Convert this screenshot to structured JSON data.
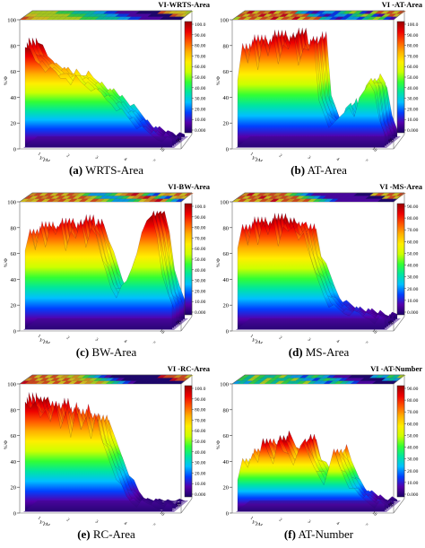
{
  "colorbar_colors": [
    "#1a0066",
    "#5500aa",
    "#0040ff",
    "#00bfff",
    "#00e5a0",
    "#33ff33",
    "#ccff00",
    "#ffee00",
    "#ffb000",
    "#ff5500",
    "#ee0000",
    "#990000"
  ],
  "chart_data": [
    {
      "type": "surface",
      "panel_letter": "(a)",
      "caption": "WRTS-Area",
      "title": "VI-WRTS-Area",
      "zlabel": "%/Φ",
      "xlabel": "ɣ/ɣM",
      "zlim": [
        0,
        100
      ],
      "z_ticks": [
        "0",
        "20",
        "40",
        "60",
        "80",
        "100"
      ],
      "colorbar_ticks": [
        "100.0",
        "90.00",
        "80.00",
        "70.00",
        "60.00",
        "50.00",
        "40.00",
        "30.00",
        "20.00",
        "10.00",
        "0.000"
      ],
      "x_ticks": [
        "1",
        "2",
        "3",
        "4",
        "5"
      ],
      "y_ticks": [
        "10",
        "20"
      ],
      "profile": [
        88,
        80,
        72,
        70,
        66,
        64,
        62,
        58,
        60,
        56,
        58,
        54,
        52,
        50,
        46,
        44,
        40,
        38,
        34,
        30,
        26,
        22,
        18,
        14,
        12,
        10,
        8,
        8,
        6,
        6
      ]
    },
    {
      "type": "surface",
      "panel_letter": "(b)",
      "caption": "AT-Area",
      "title": "VI -AT-Area",
      "zlabel": "%/Φ",
      "xlabel": "ɣ/ɣM",
      "zlim": [
        0,
        100
      ],
      "z_ticks": [
        "0",
        "20",
        "40",
        "60",
        "80",
        "100"
      ],
      "colorbar_ticks": [
        "100.0",
        "90.00",
        "80.00",
        "70.00",
        "60.00",
        "50.00",
        "40.00",
        "30.00",
        "20.00",
        "10.00",
        "0.000"
      ],
      "x_ticks": [
        "1",
        "2",
        "3",
        "4",
        "5"
      ],
      "y_ticks": [
        "10",
        "20"
      ],
      "profile": [
        60,
        85,
        70,
        92,
        68,
        88,
        75,
        95,
        72,
        90,
        80,
        96,
        70,
        86,
        78,
        92,
        40,
        30,
        20,
        18,
        24,
        30,
        36,
        22,
        40,
        48,
        56,
        50,
        20,
        10
      ]
    },
    {
      "type": "surface",
      "panel_letter": "(c)",
      "caption": "BW-Area",
      "title": "VI-BW-Area",
      "zlabel": "%/Φ",
      "xlabel": "ɣ/ɣM",
      "zlim": [
        0,
        100
      ],
      "z_ticks": [
        "0",
        "20",
        "40",
        "60",
        "80",
        "100"
      ],
      "colorbar_ticks": [
        "100.0",
        "90.00",
        "80.00",
        "70.00",
        "60.00",
        "50.00",
        "40.00",
        "30.00",
        "20.00",
        "10.00",
        "0.000"
      ],
      "x_ticks": [
        "1",
        "2",
        "3",
        "4",
        "5"
      ],
      "y_ticks": [
        "10",
        "20"
      ],
      "profile": [
        70,
        82,
        66,
        88,
        72,
        84,
        78,
        90,
        68,
        86,
        74,
        92,
        70,
        88,
        76,
        60,
        48,
        36,
        30,
        34,
        40,
        52,
        66,
        78,
        90,
        96,
        80,
        50,
        30,
        20
      ]
    },
    {
      "type": "surface",
      "panel_letter": "(d)",
      "caption": "MS-Area",
      "title": "VI -MS-Area",
      "zlabel": "%/Φ",
      "xlabel": "ɣ/ɣM",
      "zlim": [
        0,
        100
      ],
      "z_ticks": [
        "0",
        "20",
        "40",
        "60",
        "80",
        "100"
      ],
      "colorbar_ticks": [
        "90.00",
        "80.00",
        "70.00",
        "60.00",
        "50.00",
        "40.00",
        "30.00",
        "20.00",
        "10.00",
        "0.000"
      ],
      "x_ticks": [
        "1",
        "2",
        "3",
        "4",
        "5"
      ],
      "y_ticks": [
        "10",
        "20"
      ],
      "profile": [
        72,
        86,
        70,
        92,
        74,
        88,
        78,
        94,
        72,
        90,
        80,
        86,
        76,
        84,
        62,
        50,
        40,
        30,
        22,
        18,
        16,
        14,
        14,
        12,
        12,
        10,
        10,
        8,
        8,
        8
      ]
    },
    {
      "type": "surface",
      "panel_letter": "(e)",
      "caption": "RC-Area",
      "title": "VI -RC-Area",
      "zlabel": "%/Φ",
      "xlabel": "ɣ/ɣM",
      "zlim": [
        0,
        100
      ],
      "z_ticks": [
        "0",
        "20",
        "40",
        "60",
        "80",
        "100"
      ],
      "colorbar_ticks": [
        "100.0",
        "90.00",
        "80.00",
        "70.00",
        "60.00",
        "50.00",
        "40.00",
        "30.00",
        "20.00",
        "10.00",
        "0.000"
      ],
      "x_ticks": [
        "1",
        "2",
        "3",
        "4",
        "5"
      ],
      "y_ticks": [
        "10",
        "20"
      ],
      "profile": [
        96,
        84,
        92,
        80,
        88,
        72,
        90,
        70,
        86,
        66,
        84,
        68,
        80,
        64,
        78,
        60,
        50,
        40,
        30,
        20,
        12,
        8,
        6,
        6,
        5,
        5,
        4,
        4,
        4,
        4
      ]
    },
    {
      "type": "surface",
      "panel_letter": "(f)",
      "caption": "AT-Number",
      "title": "VI -AT-Number",
      "zlabel": "%/Φ",
      "xlabel": "ɣ/ɣM",
      "zlim": [
        0,
        100
      ],
      "z_ticks": [
        "0",
        "20",
        "40",
        "60",
        "80",
        "100"
      ],
      "colorbar_ticks": [
        "90.00",
        "80.00",
        "70.00",
        "60.00",
        "50.00",
        "40.00",
        "30.00",
        "20.00",
        "10.00",
        "0.000"
      ],
      "x_ticks": [
        "1",
        "2",
        "3",
        "4",
        "5"
      ],
      "y_ticks": [
        "10",
        "20"
      ],
      "profile": [
        30,
        42,
        36,
        50,
        44,
        58,
        48,
        40,
        62,
        54,
        46,
        38,
        52,
        60,
        44,
        36,
        30,
        24,
        40,
        50,
        38,
        30,
        22,
        16,
        12,
        10,
        8,
        6,
        6,
        5
      ]
    }
  ]
}
